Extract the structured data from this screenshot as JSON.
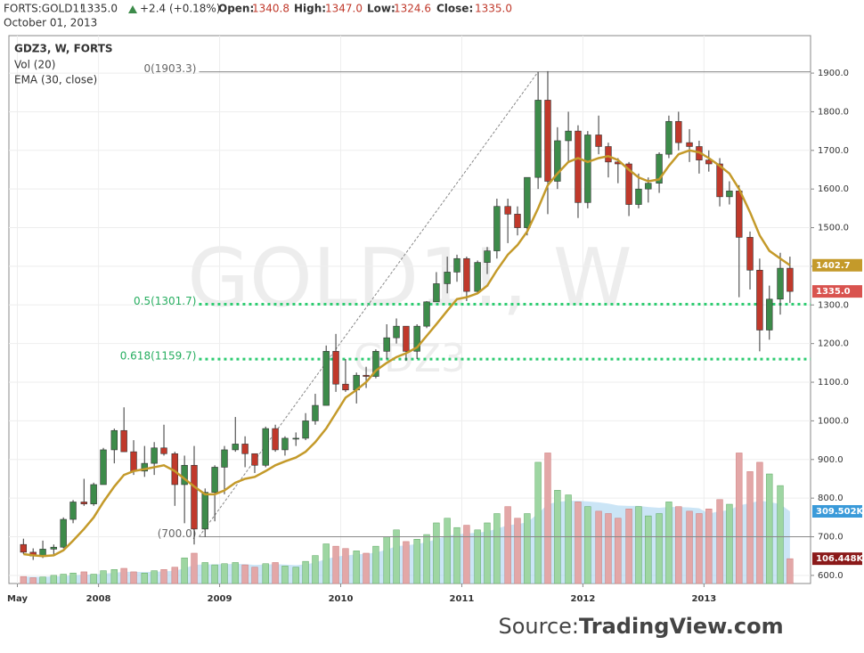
{
  "header": {
    "symbol": "FORTS:GOLD1!",
    "last": "1335.0",
    "change": "+2.4 (+0.18%)",
    "open_label": "Open:",
    "open": "1340.8",
    "high_label": "High:",
    "high": "1347.0",
    "low_label": "Low:",
    "low": "1324.6",
    "close_label": "Close:",
    "close": "1335.0",
    "date": "October 01, 2013"
  },
  "source": {
    "prefix": "Source: ",
    "site": "TradingView.com"
  },
  "chart_data": {
    "type": "candlestick",
    "title": "GDZ3, W, FORTS",
    "watermark": "GOLD1!, W",
    "watermark_sub": "GDZ3",
    "up_color": "#3d8b4a",
    "down_color": "#c0392b",
    "grid": true,
    "x": [
      2007.38,
      2007.46,
      2007.54,
      2007.63,
      2007.71,
      2007.79,
      2007.88,
      2007.96,
      2008.04,
      2008.13,
      2008.21,
      2008.29,
      2008.38,
      2008.46,
      2008.54,
      2008.63,
      2008.71,
      2008.79,
      2008.88,
      2008.96,
      2009.04,
      2009.13,
      2009.21,
      2009.29,
      2009.38,
      2009.46,
      2009.54,
      2009.63,
      2009.71,
      2009.79,
      2009.88,
      2009.96,
      2010.04,
      2010.13,
      2010.21,
      2010.29,
      2010.38,
      2010.46,
      2010.54,
      2010.63,
      2010.71,
      2010.79,
      2010.88,
      2010.96,
      2011.04,
      2011.13,
      2011.21,
      2011.29,
      2011.38,
      2011.46,
      2011.54,
      2011.63,
      2011.71,
      2011.79,
      2011.88,
      2011.96,
      2012.04,
      2012.13,
      2012.21,
      2012.29,
      2012.38,
      2012.46,
      2012.54,
      2012.63,
      2012.71,
      2012.79,
      2012.88,
      2012.96,
      2013.04,
      2013.13,
      2013.21,
      2013.29,
      2013.38,
      2013.46,
      2013.54,
      2013.63,
      2013.71
    ],
    "open": [
      680,
      660,
      650,
      668,
      673,
      745,
      790,
      785,
      835,
      925,
      975,
      920,
      870,
      890,
      930,
      915,
      835,
      885,
      720,
      815,
      880,
      925,
      940,
      915,
      885,
      980,
      925,
      955,
      955,
      1000,
      1040,
      1180,
      1095,
      1080,
      1118,
      1115,
      1180,
      1215,
      1245,
      1180,
      1245,
      1308,
      1355,
      1385,
      1420,
      1335,
      1410,
      1440,
      1555,
      1535,
      1500,
      1630,
      1830,
      1620,
      1725,
      1750,
      1565,
      1740,
      1710,
      1670,
      1665,
      1560,
      1600,
      1615,
      1690,
      1775,
      1720,
      1710,
      1675,
      1665,
      1580,
      1595,
      1475,
      1390,
      1235,
      1315,
      1395
    ],
    "high": [
      695,
      670,
      690,
      680,
      750,
      795,
      850,
      840,
      930,
      980,
      1035,
      950,
      935,
      945,
      990,
      920,
      910,
      935,
      825,
      885,
      935,
      1010,
      960,
      915,
      985,
      990,
      960,
      970,
      1020,
      1070,
      1195,
      1225,
      1160,
      1125,
      1140,
      1185,
      1250,
      1265,
      1245,
      1250,
      1310,
      1385,
      1425,
      1430,
      1425,
      1415,
      1450,
      1575,
      1575,
      1555,
      1630,
      1903,
      1905,
      1760,
      1800,
      1765,
      1750,
      1790,
      1720,
      1680,
      1670,
      1640,
      1630,
      1695,
      1790,
      1800,
      1755,
      1725,
      1700,
      1680,
      1620,
      1610,
      1490,
      1420,
      1350,
      1435,
      1425
    ],
    "low": [
      655,
      640,
      645,
      650,
      670,
      735,
      780,
      780,
      835,
      890,
      920,
      860,
      855,
      860,
      910,
      780,
      735,
      680,
      700,
      740,
      810,
      920,
      880,
      865,
      880,
      920,
      910,
      935,
      950,
      990,
      1040,
      1075,
      1075,
      1045,
      1085,
      1110,
      1160,
      1200,
      1155,
      1160,
      1240,
      1310,
      1330,
      1360,
      1310,
      1330,
      1380,
      1420,
      1460,
      1480,
      1480,
      1600,
      1535,
      1600,
      1670,
      1525,
      1550,
      1690,
      1630,
      1615,
      1530,
      1550,
      1565,
      1590,
      1680,
      1700,
      1670,
      1640,
      1645,
      1555,
      1560,
      1320,
      1340,
      1180,
      1210,
      1275,
      1305
    ],
    "close": [
      660,
      650,
      668,
      673,
      745,
      790,
      785,
      835,
      925,
      975,
      920,
      870,
      890,
      930,
      915,
      835,
      885,
      720,
      815,
      880,
      925,
      940,
      915,
      885,
      980,
      925,
      955,
      955,
      1000,
      1040,
      1180,
      1095,
      1080,
      1118,
      1115,
      1180,
      1215,
      1245,
      1180,
      1245,
      1308,
      1355,
      1385,
      1420,
      1335,
      1410,
      1440,
      1555,
      1535,
      1500,
      1630,
      1830,
      1620,
      1725,
      1750,
      1565,
      1740,
      1710,
      1670,
      1665,
      1560,
      1600,
      1615,
      1690,
      1775,
      1720,
      1710,
      1675,
      1665,
      1580,
      1595,
      1475,
      1390,
      1235,
      1315,
      1395,
      1335
    ],
    "ema": {
      "name": "EMA (30, close)",
      "color": "#c49a2a",
      "values": [
        655,
        652,
        650,
        652,
        665,
        690,
        720,
        750,
        790,
        830,
        860,
        870,
        875,
        880,
        885,
        870,
        850,
        830,
        810,
        810,
        820,
        840,
        850,
        855,
        870,
        885,
        895,
        905,
        920,
        945,
        980,
        1020,
        1060,
        1080,
        1100,
        1130,
        1150,
        1165,
        1175,
        1190,
        1220,
        1250,
        1285,
        1315,
        1320,
        1330,
        1350,
        1390,
        1430,
        1455,
        1490,
        1550,
        1610,
        1640,
        1670,
        1680,
        1670,
        1680,
        1685,
        1675,
        1650,
        1630,
        1620,
        1625,
        1660,
        1690,
        1700,
        1695,
        1680,
        1660,
        1640,
        1600,
        1540,
        1480,
        1440,
        1420,
        1402.7
      ]
    },
    "volume": {
      "name": "Vol (20)",
      "axis": "y2",
      "up_color": "#9ed6a2",
      "down_color": "#e3a7a7",
      "values": [
        30000,
        25000,
        28000,
        35000,
        40000,
        45000,
        50000,
        40000,
        55000,
        60000,
        65000,
        50000,
        45000,
        55000,
        60000,
        70000,
        110000,
        130000,
        90000,
        80000,
        85000,
        90000,
        80000,
        70000,
        85000,
        90000,
        75000,
        70000,
        95000,
        120000,
        170000,
        160000,
        150000,
        140000,
        130000,
        160000,
        200000,
        230000,
        180000,
        190000,
        210000,
        260000,
        280000,
        240000,
        250000,
        230000,
        260000,
        300000,
        330000,
        280000,
        300000,
        520000,
        560000,
        400000,
        380000,
        350000,
        330000,
        310000,
        300000,
        280000,
        320000,
        330000,
        290000,
        300000,
        350000,
        330000,
        310000,
        300000,
        320000,
        360000,
        340000,
        560000,
        480000,
        520000,
        470000,
        420000,
        106448
      ]
    },
    "volume_ema": {
      "axis": "y2",
      "color": "#a9d4f0",
      "values": [
        30000,
        29000,
        29000,
        30000,
        32000,
        35000,
        38000,
        38000,
        42000,
        46000,
        50000,
        50000,
        49000,
        50000,
        52000,
        55000,
        65000,
        80000,
        82000,
        82000,
        83000,
        84000,
        83000,
        80000,
        81000,
        83000,
        81000,
        79000,
        82000,
        90000,
        105000,
        115000,
        120000,
        125000,
        127000,
        133000,
        145000,
        160000,
        164000,
        169000,
        177000,
        190000,
        205000,
        210000,
        215000,
        218000,
        223000,
        235000,
        250000,
        255000,
        262000,
        300000,
        340000,
        350000,
        355000,
        355000,
        352000,
        348000,
        343000,
        335000,
        333000,
        333000,
        328000,
        325000,
        328000,
        328000,
        326000,
        323000,
        300000,
        310000,
        315000,
        335000,
        345000,
        355000,
        350000,
        340000,
        309502
      ]
    },
    "xlim": [
      2007.26,
      2013.88
    ],
    "xticks": [
      {
        "value": 2007.33,
        "label": "May"
      },
      2008,
      2009,
      2010,
      2011,
      2012,
      2013
    ],
    "ylim": [
      579,
      1997
    ],
    "yticks": [
      {
        "value": 600,
        "label": "600.0"
      },
      {
        "value": 700,
        "label": "700.0"
      },
      {
        "value": 800,
        "label": "800.0"
      },
      {
        "value": 900,
        "label": "900.0"
      },
      {
        "value": 1000,
        "label": "1000.0"
      },
      {
        "value": 1100,
        "label": "1100.0"
      },
      {
        "value": 1200,
        "label": "1200.0"
      },
      {
        "value": 1300,
        "label": "1300.0"
      },
      {
        "value": 1400,
        "label": "1400.0"
      },
      {
        "value": 1500,
        "label": "1500.0"
      },
      {
        "value": 1600,
        "label": "1600.0"
      },
      {
        "value": 1700,
        "label": "1700.0"
      },
      {
        "value": 1800,
        "label": "1800.0"
      },
      {
        "value": 1900,
        "label": "1900.0"
      }
    ],
    "y2lim": [
      0,
      2350000
    ],
    "fib_levels": [
      {
        "value": 1903.3,
        "label": "0(1903.3)",
        "color": "#888888",
        "style": "solid"
      },
      {
        "value": 1301.7,
        "label": "0.5(1301.7)",
        "color": "#2ecc71",
        "style": "dotted"
      },
      {
        "value": 1159.7,
        "label": "0.618(1159.7)",
        "color": "#2ecc71",
        "style": "dotted"
      },
      {
        "value": 700.0,
        "label": "(700.0)",
        "color": "#888888",
        "style": "solid"
      }
    ],
    "trendline": {
      "x": [
        2008.83,
        2011.63
      ],
      "y": [
        700.0,
        1903.3
      ],
      "color": "#888888"
    },
    "price_labels": [
      {
        "value": 1402.7,
        "label": "1402.7",
        "color": "#c49a2a"
      },
      {
        "value": 1335.0,
        "label": "1335.0",
        "color": "#d9534f"
      }
    ],
    "volume_labels": [
      {
        "value": 309502,
        "label": "309.502K",
        "color": "#3a9ad9"
      },
      {
        "value": 106448,
        "label": "106.448K",
        "color": "#8b1a1a"
      }
    ]
  }
}
